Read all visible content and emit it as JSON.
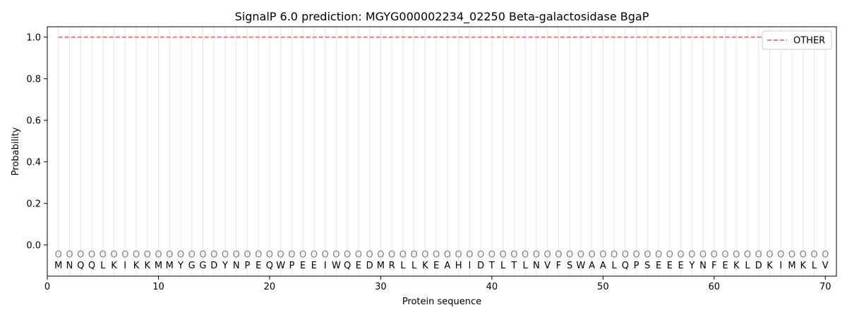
{
  "chart_data": {
    "type": "line",
    "title": "SignalP 6.0 prediction: MGYG000002234_02250 Beta-galactosidase BgaP",
    "xlabel": "Protein sequence",
    "ylabel": "Probability",
    "xlim": [
      0,
      71
    ],
    "ylim": [
      -0.15,
      1.05
    ],
    "xticks": [
      0,
      10,
      20,
      30,
      40,
      50,
      60,
      70
    ],
    "yticks": [
      0.0,
      0.2,
      0.4,
      0.6,
      0.8,
      1.0
    ],
    "ytick_labels": [
      "0.0",
      "0.2",
      "0.4",
      "0.6",
      "0.8",
      "1.0"
    ],
    "grid": "vertical lines at each residue",
    "legend_position": "top-right",
    "sequence": [
      "M",
      "N",
      "Q",
      "Q",
      "L",
      "K",
      "I",
      "K",
      "K",
      "M",
      "M",
      "Y",
      "G",
      "G",
      "D",
      "Y",
      "N",
      "P",
      "E",
      "Q",
      "W",
      "P",
      "E",
      "E",
      "I",
      "W",
      "Q",
      "E",
      "D",
      "M",
      "R",
      "L",
      "L",
      "K",
      "E",
      "A",
      "H",
      "I",
      "D",
      "T",
      "L",
      "T",
      "L",
      "N",
      "V",
      "F",
      "S",
      "W",
      "A",
      "A",
      "L",
      "Q",
      "P",
      "S",
      "E",
      "E",
      "E",
      "Y",
      "N",
      "F",
      "E",
      "K",
      "L",
      "D",
      "K",
      "I",
      "M",
      "K",
      "L",
      "V"
    ],
    "label_marker": "O",
    "label_marker_y": -0.045,
    "series": [
      {
        "name": "OTHER",
        "color": "#e87d7d",
        "style": "dashed",
        "x_start": 1,
        "x_end": 70,
        "value": 1.0
      }
    ]
  }
}
